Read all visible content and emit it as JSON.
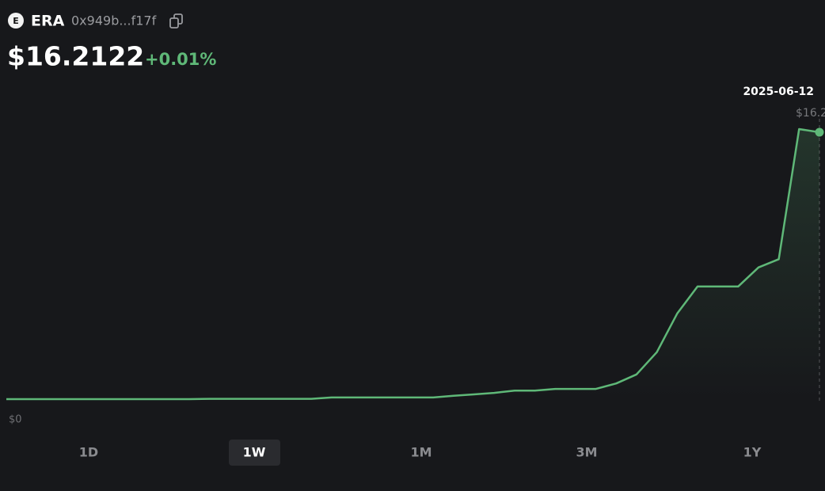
{
  "header": {
    "icon_letter": "E",
    "symbol": "ERA",
    "address": "0x949b...f17f",
    "price": "$16.2122",
    "change": "+0.01%"
  },
  "chart_data": {
    "type": "line",
    "color": "#5fb878",
    "values": [
      0,
      0,
      0,
      0,
      0,
      0,
      0,
      0,
      0,
      0,
      0.02,
      0.02,
      0.02,
      0.02,
      0.02,
      0.02,
      0.1,
      0.1,
      0.1,
      0.1,
      0.1,
      0.1,
      0.2,
      0.29,
      0.38,
      0.52,
      0.52,
      0.62,
      0.62,
      0.62,
      0.95,
      1.5,
      2.85,
      5.2,
      6.84,
      6.84,
      6.84,
      8.0,
      8.5,
      16.4,
      16.21
    ],
    "hover_date": "2025-06-12",
    "hover_value": "$16.2",
    "baseline_label": "$0"
  },
  "ranges": [
    "1D",
    "1W",
    "1M",
    "3M",
    "1Y"
  ],
  "selected_range": "1W"
}
